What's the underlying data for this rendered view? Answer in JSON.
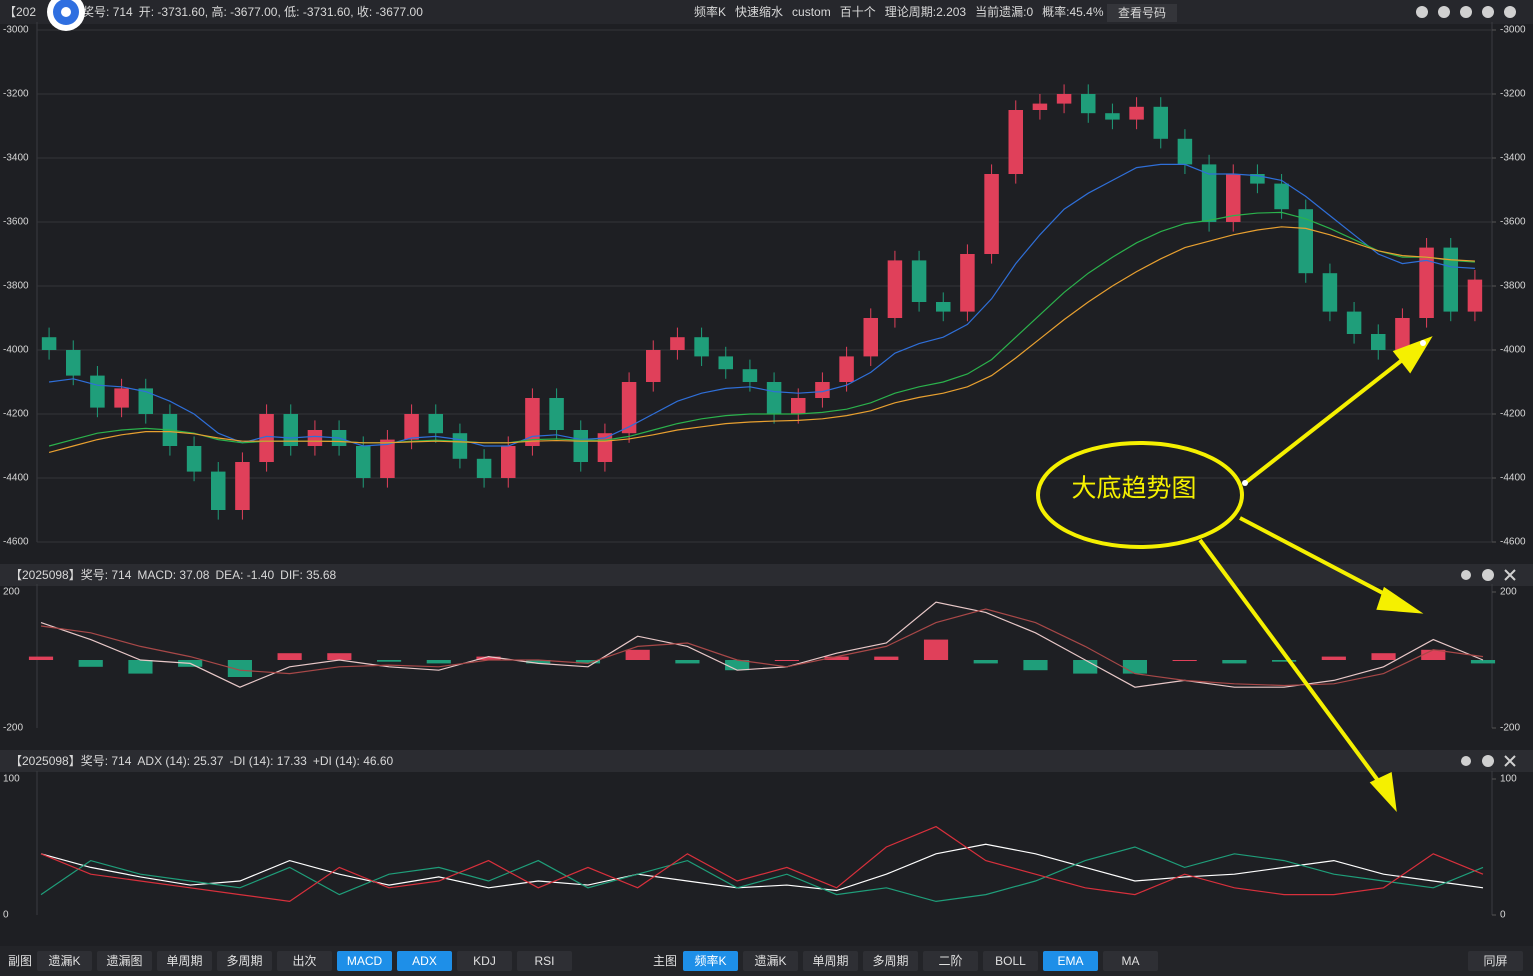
{
  "chart_data": [
    {
      "type": "candlestick",
      "header": [
        {
          "text": "【202",
          "color": "#d8d8d8"
        },
        {
          "text": "奖号: 714",
          "color": "#d8d8d8"
        },
        {
          "text": "开: -3731.60, 高: -3677.00, 低: -3731.60, 收: -3677.00",
          "color": "#d8d8d8"
        }
      ],
      "header_right": [
        "频率K",
        "快速缩水",
        "custom",
        "百十个",
        "理论周期:2.203",
        "当前遗漏:0",
        "概率:45.4%"
      ],
      "header_button": "查看号码",
      "annotation": "大底趋势图",
      "ylim": [
        -4600,
        -3000
      ],
      "yticks": [
        -3000,
        -3200,
        -3400,
        -3600,
        -3800,
        -4000,
        -4200,
        -4400,
        -4600
      ],
      "tick_color": "#d8404c",
      "grid": true,
      "up_color": "#e0405a",
      "down_color": "#1f9e7a",
      "open": [
        -3960,
        -4000,
        -4080,
        -4180,
        -4120,
        -4200,
        -4300,
        -4380,
        -4500,
        -4350,
        -4200,
        -4300,
        -4250,
        -4300,
        -4400,
        -4280,
        -4200,
        -4260,
        -4340,
        -4400,
        -4300,
        -4150,
        -4250,
        -4350,
        -4260,
        -4100,
        -4000,
        -3960,
        -4020,
        -4060,
        -4100,
        -4200,
        -4150,
        -4100,
        -4020,
        -3900,
        -3720,
        -3850,
        -3880,
        -3700,
        -3450,
        -3250,
        -3230,
        -3200,
        -3260,
        -3280,
        -3240,
        -3340,
        -3420,
        -3600,
        -3450,
        -3480,
        -3560,
        -3760,
        -3880,
        -3950,
        -4000,
        -3900,
        -3680,
        -3880
      ],
      "high": [
        -3930,
        -3970,
        -4050,
        -4090,
        -4090,
        -4170,
        -4270,
        -4350,
        -4320,
        -4170,
        -4170,
        -4220,
        -4220,
        -4270,
        -4250,
        -4170,
        -4170,
        -4230,
        -4310,
        -4270,
        -4120,
        -4120,
        -4220,
        -4230,
        -4070,
        -3970,
        -3930,
        -3930,
        -3990,
        -4030,
        -4070,
        -4120,
        -4070,
        -3990,
        -3870,
        -3690,
        -3690,
        -3820,
        -3670,
        -3420,
        -3220,
        -3200,
        -3170,
        -3170,
        -3230,
        -3210,
        -3210,
        -3310,
        -3390,
        -3420,
        -3420,
        -3450,
        -3530,
        -3730,
        -3850,
        -3920,
        -3870,
        -3650,
        -3650,
        -3750
      ],
      "low": [
        -4030,
        -4110,
        -4210,
        -4210,
        -4230,
        -4330,
        -4410,
        -4530,
        -4530,
        -4380,
        -4330,
        -4330,
        -4330,
        -4430,
        -4430,
        -4310,
        -4290,
        -4370,
        -4430,
        -4430,
        -4330,
        -4280,
        -4380,
        -4380,
        -4290,
        -4130,
        -4030,
        -4050,
        -4090,
        -4130,
        -4230,
        -4230,
        -4180,
        -4130,
        -4050,
        -3930,
        -3880,
        -3910,
        -3910,
        -3730,
        -3480,
        -3280,
        -3260,
        -3290,
        -3310,
        -3310,
        -3370,
        -3450,
        -3630,
        -3630,
        -3510,
        -3590,
        -3790,
        -3910,
        -3980,
        -4030,
        -4030,
        -3930,
        -3910,
        -3910
      ],
      "close": [
        -4000,
        -4080,
        -4180,
        -4120,
        -4200,
        -4300,
        -4380,
        -4500,
        -4350,
        -4200,
        -4300,
        -4250,
        -4300,
        -4400,
        -4280,
        -4200,
        -4260,
        -4340,
        -4400,
        -4300,
        -4150,
        -4250,
        -4350,
        -4260,
        -4100,
        -4000,
        -3960,
        -4020,
        -4060,
        -4100,
        -4200,
        -4150,
        -4100,
        -4020,
        -3900,
        -3720,
        -3850,
        -3880,
        -3700,
        -3450,
        -3250,
        -3230,
        -3200,
        -3260,
        -3280,
        -3240,
        -3340,
        -3420,
        -3600,
        -3450,
        -3480,
        -3560,
        -3760,
        -3880,
        -3950,
        -4000,
        -3900,
        -3680,
        -3880,
        -3780
      ],
      "series": [
        {
          "color": "#2f6fd8",
          "values": [
            -4100,
            -4090,
            -4110,
            -4115,
            -4130,
            -4160,
            -4200,
            -4260,
            -4290,
            -4270,
            -4275,
            -4270,
            -4275,
            -4300,
            -4295,
            -4275,
            -4270,
            -4280,
            -4300,
            -4300,
            -4270,
            -4265,
            -4280,
            -4275,
            -4240,
            -4200,
            -4160,
            -4135,
            -4120,
            -4115,
            -4130,
            -4135,
            -4130,
            -4110,
            -4070,
            -4010,
            -3980,
            -3960,
            -3920,
            -3840,
            -3730,
            -3640,
            -3560,
            -3510,
            -3470,
            -3430,
            -3420,
            -3420,
            -3450,
            -3450,
            -3455,
            -3470,
            -3520,
            -3580,
            -3640,
            -3700,
            -3730,
            -3720,
            -3740,
            -3745
          ]
        },
        {
          "color": "#2bb24c",
          "values": [
            -4300,
            -4280,
            -4260,
            -4250,
            -4245,
            -4250,
            -4260,
            -4280,
            -4290,
            -4285,
            -4285,
            -4285,
            -4285,
            -4290,
            -4290,
            -4285,
            -4282,
            -4285,
            -4290,
            -4290,
            -4280,
            -4278,
            -4282,
            -4282,
            -4270,
            -4250,
            -4230,
            -4215,
            -4205,
            -4200,
            -4200,
            -4200,
            -4195,
            -4185,
            -4165,
            -4135,
            -4115,
            -4100,
            -4075,
            -4030,
            -3960,
            -3890,
            -3820,
            -3760,
            -3710,
            -3665,
            -3630,
            -3605,
            -3595,
            -3580,
            -3572,
            -3570,
            -3590,
            -3620,
            -3655,
            -3690,
            -3710,
            -3710,
            -3720,
            -3725
          ]
        },
        {
          "color": "#e8a030",
          "values": [
            -4320,
            -4300,
            -4280,
            -4265,
            -4255,
            -4255,
            -4262,
            -4275,
            -4285,
            -4285,
            -4285,
            -4285,
            -4286,
            -4290,
            -4290,
            -4287,
            -4285,
            -4287,
            -4290,
            -4290,
            -4285,
            -4283,
            -4285,
            -4285,
            -4278,
            -4265,
            -4250,
            -4240,
            -4230,
            -4225,
            -4222,
            -4220,
            -4215,
            -4205,
            -4190,
            -4165,
            -4148,
            -4135,
            -4115,
            -4080,
            -4025,
            -3965,
            -3905,
            -3850,
            -3800,
            -3755,
            -3715,
            -3680,
            -3660,
            -3640,
            -3625,
            -3615,
            -3620,
            -3640,
            -3665,
            -3690,
            -3705,
            -3710,
            -3718,
            -3722
          ]
        }
      ]
    },
    {
      "type": "line",
      "header": [
        {
          "text": "【2025098】奖号: 714",
          "color": "#d8d8d8"
        },
        {
          "text": "MACD: 37.08",
          "color": "#d8404c"
        },
        {
          "text": "DEA: -1.40",
          "color": "#b03a3a"
        },
        {
          "text": "DIF: 35.68",
          "color": "#c8c8c8"
        }
      ],
      "ylim": [
        -200,
        200
      ],
      "yticks": [
        200,
        -200
      ],
      "tick_color": "#d8404c",
      "series": [
        {
          "type": "bar",
          "up_color": "#e0405a",
          "down_color": "#1f9e7a",
          "values": [
            10,
            -20,
            -40,
            -20,
            -50,
            20,
            20,
            -5,
            -10,
            10,
            -10,
            -10,
            30,
            -10,
            -30,
            0,
            10,
            10,
            60,
            -10,
            -30,
            -40,
            -40,
            0,
            -10,
            -5,
            10,
            20,
            30,
            -10
          ]
        },
        {
          "color": "#e8c8c8",
          "values": [
            110,
            60,
            0,
            -10,
            -80,
            -20,
            0,
            -20,
            -30,
            10,
            -10,
            -20,
            70,
            40,
            -30,
            -20,
            20,
            50,
            170,
            140,
            80,
            0,
            -80,
            -60,
            -80,
            -80,
            -60,
            -20,
            60,
            0
          ]
        },
        {
          "color": "#a84848",
          "values": [
            100,
            80,
            40,
            10,
            -30,
            -40,
            -20,
            -15,
            -20,
            0,
            0,
            -10,
            40,
            50,
            0,
            -20,
            10,
            40,
            110,
            150,
            110,
            40,
            -40,
            -60,
            -70,
            -75,
            -70,
            -40,
            30,
            10
          ]
        }
      ]
    },
    {
      "type": "line",
      "header": [
        {
          "text": "【2025098】奖号: 714",
          "color": "#d8d8d8"
        },
        {
          "text": "ADX (14): 25.37",
          "color": "#d8d8d8"
        },
        {
          "text": "-DI (14): 17.33",
          "color": "#1f9e7a"
        },
        {
          "text": "+DI (14): 46.60",
          "color": "#d8404c"
        }
      ],
      "ylim": [
        0,
        100
      ],
      "yticks": [
        100,
        0
      ],
      "tick_color": "#d8404c",
      "series": [
        {
          "color": "#ffffff",
          "values": [
            45,
            35,
            28,
            22,
            25,
            40,
            30,
            22,
            28,
            20,
            25,
            22,
            30,
            25,
            20,
            22,
            18,
            30,
            45,
            52,
            45,
            35,
            25,
            28,
            30,
            35,
            40,
            30,
            25,
            20
          ]
        },
        {
          "color": "#1f9e7a",
          "values": [
            15,
            40,
            30,
            25,
            20,
            35,
            15,
            30,
            35,
            25,
            40,
            20,
            30,
            40,
            20,
            30,
            15,
            20,
            10,
            15,
            25,
            40,
            50,
            35,
            45,
            40,
            30,
            25,
            20,
            35
          ]
        },
        {
          "color": "#d8303c",
          "values": [
            45,
            30,
            25,
            20,
            15,
            10,
            35,
            20,
            25,
            40,
            20,
            35,
            20,
            45,
            25,
            35,
            20,
            50,
            65,
            40,
            30,
            20,
            15,
            30,
            20,
            15,
            15,
            20,
            45,
            30
          ]
        }
      ]
    }
  ],
  "toolbar": {
    "left_label": "副图",
    "left_buttons": [
      {
        "label": "遗漏K",
        "active": false
      },
      {
        "label": "遗漏图",
        "active": false
      },
      {
        "label": "单周期",
        "active": false
      },
      {
        "label": "多周期",
        "active": false
      },
      {
        "label": "出次",
        "active": false
      },
      {
        "label": "MACD",
        "active": true
      },
      {
        "label": "ADX",
        "active": true
      },
      {
        "label": "KDJ",
        "active": false
      },
      {
        "label": "RSI",
        "active": false
      }
    ],
    "right_label": "主图",
    "right_buttons": [
      {
        "label": "频率K",
        "active": true
      },
      {
        "label": "遗漏K",
        "active": false
      },
      {
        "label": "单周期",
        "active": false
      },
      {
        "label": "多周期",
        "active": false
      },
      {
        "label": "二阶",
        "active": false
      },
      {
        "label": "BOLL",
        "active": false
      },
      {
        "label": "EMA",
        "active": true
      },
      {
        "label": "MA",
        "active": false
      }
    ],
    "end_button": "同屏"
  }
}
